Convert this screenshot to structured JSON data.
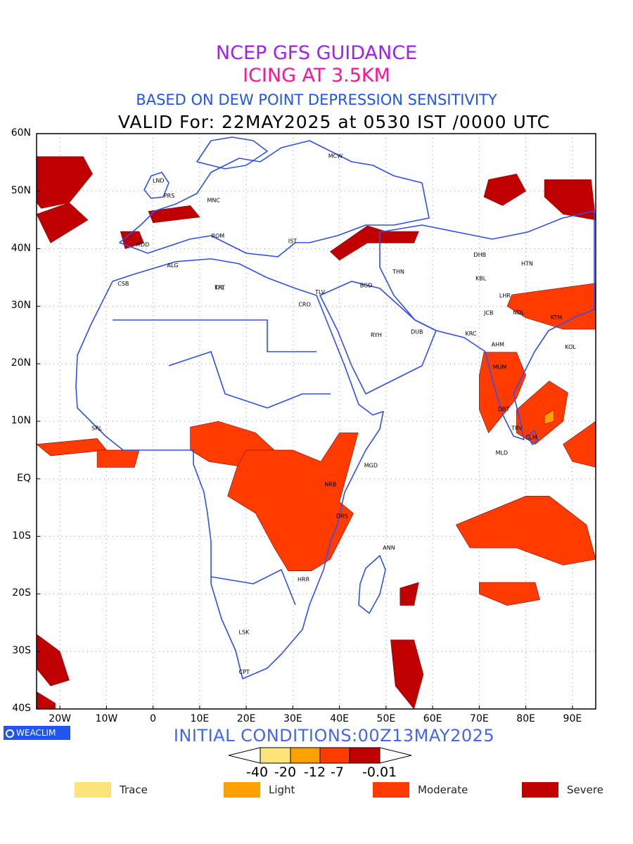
{
  "titles": {
    "line1": "NCEP GFS GUIDANCE",
    "line2": "ICING AT 3.5KM",
    "line3": "BASED ON DEW POINT DEPRESSION SENSITIVITY",
    "line4": "VALID For: 22MAY2025 at 0530 IST /0000 UTC"
  },
  "axes": {
    "lat_labels": [
      "60N",
      "50N",
      "40N",
      "30N",
      "20N",
      "10N",
      "EQ",
      "10S",
      "20S",
      "30S",
      "40S"
    ],
    "lon_labels": [
      "20W",
      "10W",
      "0",
      "10E",
      "20E",
      "30E",
      "40E",
      "50E",
      "60E",
      "70E",
      "80E",
      "90E"
    ]
  },
  "initial_conditions": "INITIAL CONDITIONS:00Z13MAY2025",
  "logo": "WEACLIM",
  "colorbar": {
    "labels": [
      "-40",
      "-20",
      "-12",
      "-7",
      "-0.01"
    ],
    "colors": [
      "#fde68a",
      "#fbbf24",
      "#ff4500",
      "#ff2000",
      "#c00000"
    ]
  },
  "legend": [
    {
      "label": "Trace",
      "color": "#fde47a"
    },
    {
      "label": "Light",
      "color": "#ffa000"
    },
    {
      "label": "Moderate",
      "color": "#ff3b00"
    },
    {
      "label": "Severe",
      "color": "#c00000"
    }
  ],
  "cities": [
    {
      "code": "MCW",
      "lon": 37.6,
      "lat": 55.8
    },
    {
      "code": "LND",
      "lon": -0.1,
      "lat": 51.5
    },
    {
      "code": "PRS",
      "lon": 2.3,
      "lat": 48.9
    },
    {
      "code": "MNC",
      "lon": 11.6,
      "lat": 48.1
    },
    {
      "code": "ROM",
      "lon": 12.5,
      "lat": 41.9
    },
    {
      "code": "MDD",
      "lon": -3.7,
      "lat": 40.4
    },
    {
      "code": "IST",
      "lon": 29.0,
      "lat": 41.0
    },
    {
      "code": "ALG",
      "lon": 3.0,
      "lat": 36.8
    },
    {
      "code": "CSB",
      "lon": -7.6,
      "lat": 33.6
    },
    {
      "code": "TPL",
      "lon": 13.2,
      "lat": 32.9
    },
    {
      "code": "KRT",
      "lon": 13.2,
      "lat": 32.9
    },
    {
      "code": "CRO",
      "lon": 31.2,
      "lat": 30.0
    },
    {
      "code": "TLV",
      "lon": 34.8,
      "lat": 32.1
    },
    {
      "code": "THN",
      "lon": 51.4,
      "lat": 35.7
    },
    {
      "code": "BGD",
      "lon": 44.4,
      "lat": 33.3
    },
    {
      "code": "RYH",
      "lon": 46.7,
      "lat": 24.7
    },
    {
      "code": "DUB",
      "lon": 55.3,
      "lat": 25.2
    },
    {
      "code": "DHB",
      "lon": 68.8,
      "lat": 38.6
    },
    {
      "code": "KBL",
      "lon": 69.2,
      "lat": 34.5
    },
    {
      "code": "LHR",
      "lon": 74.3,
      "lat": 31.5
    },
    {
      "code": "HTN",
      "lon": 79.0,
      "lat": 37.1
    },
    {
      "code": "NDL",
      "lon": 77.2,
      "lat": 28.6
    },
    {
      "code": "JCB",
      "lon": 71.0,
      "lat": 28.5
    },
    {
      "code": "KRC",
      "lon": 67.0,
      "lat": 24.9
    },
    {
      "code": "KTM",
      "lon": 85.3,
      "lat": 27.7
    },
    {
      "code": "AHM",
      "lon": 72.6,
      "lat": 23.0
    },
    {
      "code": "KOL",
      "lon": 88.4,
      "lat": 22.6
    },
    {
      "code": "MUM",
      "lon": 72.9,
      "lat": 19.1
    },
    {
      "code": "DBT",
      "lon": 74.0,
      "lat": 11.8
    },
    {
      "code": "TRV",
      "lon": 76.9,
      "lat": 8.5
    },
    {
      "code": "CLM",
      "lon": 79.9,
      "lat": 6.9
    },
    {
      "code": "MLD",
      "lon": 73.5,
      "lat": 4.2
    },
    {
      "code": "SRL",
      "lon": -13.2,
      "lat": 8.5
    },
    {
      "code": "MGD",
      "lon": 45.3,
      "lat": 2.0
    },
    {
      "code": "NRB",
      "lon": 36.8,
      "lat": -1.3
    },
    {
      "code": "DRS",
      "lon": 39.3,
      "lat": -6.8
    },
    {
      "code": "ANN",
      "lon": 49.3,
      "lat": -12.3
    },
    {
      "code": "HRR",
      "lon": 31.0,
      "lat": -17.8
    },
    {
      "code": "LSK",
      "lon": 18.4,
      "lat": -27.0
    },
    {
      "code": "CPT",
      "lon": 18.4,
      "lat": -33.9
    }
  ],
  "icing_regions": [
    {
      "name": "north-atlantic-west",
      "severity": "severe",
      "pts": [
        [
          -25,
          56
        ],
        [
          -15,
          56
        ],
        [
          -13,
          53
        ],
        [
          -18,
          48
        ],
        [
          -24,
          47
        ],
        [
          -25,
          48
        ]
      ]
    },
    {
      "name": "north-atlantic-band",
      "severity": "severe",
      "pts": [
        [
          -25,
          46
        ],
        [
          -18,
          48
        ],
        [
          -14,
          45
        ],
        [
          -22,
          41
        ]
      ]
    },
    {
      "name": "north-spain",
      "severity": "severe",
      "pts": [
        [
          -7,
          43
        ],
        [
          -3,
          43
        ],
        [
          -2,
          41
        ],
        [
          -6,
          40
        ]
      ]
    },
    {
      "name": "france-germany",
      "severity": "severe",
      "pts": [
        [
          -1,
          46.5
        ],
        [
          8,
          47.5
        ],
        [
          10,
          45.5
        ],
        [
          0,
          44.5
        ]
      ]
    },
    {
      "name": "turkey-caucasus",
      "severity": "severe",
      "pts": [
        [
          38,
          39.5
        ],
        [
          46,
          44
        ],
        [
          50,
          43
        ],
        [
          57,
          43
        ],
        [
          56,
          41
        ],
        [
          46,
          41
        ],
        [
          40,
          38
        ]
      ]
    },
    {
      "name": "kazakhstan",
      "severity": "severe",
      "pts": [
        [
          72,
          52
        ],
        [
          78,
          53
        ],
        [
          80,
          50
        ],
        [
          75,
          47.5
        ],
        [
          71,
          49
        ]
      ]
    },
    {
      "name": "mongolia",
      "severity": "severe",
      "pts": [
        [
          84,
          52
        ],
        [
          94,
          52
        ],
        [
          95,
          45
        ],
        [
          88,
          46
        ],
        [
          84,
          49
        ]
      ]
    },
    {
      "name": "north-india-plains",
      "severity": "moderate",
      "pts": [
        [
          77,
          32
        ],
        [
          95,
          34
        ],
        [
          95,
          26
        ],
        [
          88,
          26
        ],
        [
          80,
          28
        ],
        [
          76,
          30
        ]
      ]
    },
    {
      "name": "india-west-coast",
      "severity": "moderate",
      "pts": [
        [
          71,
          22
        ],
        [
          78,
          22
        ],
        [
          80,
          18
        ],
        [
          78,
          14
        ],
        [
          74,
          10
        ],
        [
          72,
          8
        ],
        [
          70,
          12
        ],
        [
          70,
          18
        ]
      ]
    },
    {
      "name": "bay-of-bengal",
      "severity": "moderate",
      "pts": [
        [
          78,
          12
        ],
        [
          85,
          17
        ],
        [
          89,
          15
        ],
        [
          88,
          10
        ],
        [
          82,
          6
        ],
        [
          78,
          8
        ]
      ]
    },
    {
      "name": "andaman",
      "severity": "moderate",
      "pts": [
        [
          88,
          6
        ],
        [
          95,
          10
        ],
        [
          95,
          2
        ],
        [
          90,
          3
        ]
      ]
    },
    {
      "name": "indian-ocean-south",
      "severity": "moderate",
      "pts": [
        [
          65,
          -8
        ],
        [
          80,
          -3
        ],
        [
          85,
          -3
        ],
        [
          93,
          -8
        ],
        [
          95,
          -14
        ],
        [
          88,
          -15
        ],
        [
          78,
          -12
        ],
        [
          68,
          -12
        ]
      ]
    },
    {
      "name": "sumatra-south",
      "severity": "moderate",
      "pts": [
        [
          70,
          -18
        ],
        [
          82,
          -18
        ],
        [
          83,
          -21
        ],
        [
          76,
          -22
        ],
        [
          70,
          -20
        ]
      ]
    },
    {
      "name": "central-africa-w",
      "severity": "moderate",
      "pts": [
        [
          8,
          9
        ],
        [
          14,
          10
        ],
        [
          22,
          8
        ],
        [
          26,
          5
        ],
        [
          20,
          2
        ],
        [
          12,
          3
        ],
        [
          8,
          5
        ]
      ]
    },
    {
      "name": "great-lakes",
      "severity": "moderate",
      "pts": [
        [
          20,
          5
        ],
        [
          30,
          5
        ],
        [
          36,
          3
        ],
        [
          40,
          8
        ],
        [
          44,
          8
        ],
        [
          42,
          2
        ],
        [
          40,
          -4
        ],
        [
          43,
          -6
        ],
        [
          38,
          -14
        ],
        [
          34,
          -16
        ],
        [
          29,
          -16
        ],
        [
          26,
          -12
        ],
        [
          22,
          -6
        ],
        [
          16,
          -3
        ],
        [
          18,
          2
        ]
      ]
    },
    {
      "name": "gulf-guinea",
      "severity": "moderate",
      "pts": [
        [
          -25,
          6
        ],
        [
          -12,
          7
        ],
        [
          -10,
          5
        ],
        [
          -22,
          4
        ]
      ]
    },
    {
      "name": "atlantic-eq",
      "severity": "moderate",
      "pts": [
        [
          -12,
          5
        ],
        [
          -3,
          5
        ],
        [
          -4,
          2
        ],
        [
          -12,
          2
        ]
      ]
    },
    {
      "name": "madagascar-east",
      "severity": "severe",
      "pts": [
        [
          53,
          -19
        ],
        [
          57,
          -18
        ],
        [
          56,
          -22
        ],
        [
          53,
          -22
        ]
      ]
    },
    {
      "name": "south-atlantic",
      "severity": "severe",
      "pts": [
        [
          -25,
          -27
        ],
        [
          -20,
          -30
        ],
        [
          -18,
          -35
        ],
        [
          -22,
          -36
        ],
        [
          -25,
          -33
        ]
      ]
    },
    {
      "name": "south-indian-ocean",
      "severity": "severe",
      "pts": [
        [
          51,
          -28
        ],
        [
          56,
          -28
        ],
        [
          58,
          -34
        ],
        [
          56,
          -40
        ],
        [
          52,
          -36
        ]
      ]
    },
    {
      "name": "south-atlantic-edge",
      "severity": "severe",
      "pts": [
        [
          -25,
          -37
        ],
        [
          -21,
          -39
        ],
        [
          -21,
          -40
        ],
        [
          -25,
          -40
        ]
      ]
    },
    {
      "name": "bengal-light",
      "severity": "light",
      "pts": [
        [
          84,
          11
        ],
        [
          86,
          12
        ],
        [
          86,
          10
        ],
        [
          84,
          9.5
        ]
      ]
    }
  ]
}
